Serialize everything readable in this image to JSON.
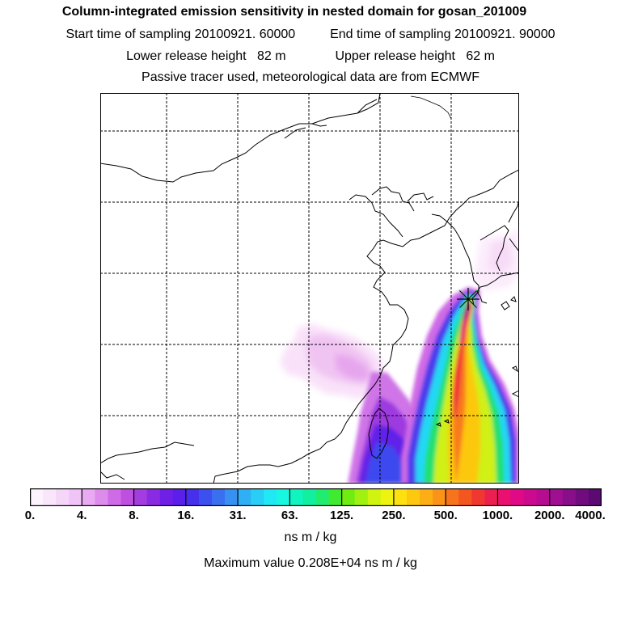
{
  "header": {
    "title": "Column-integrated emission sensitivity in nested domain for gosan_201009",
    "start_label": "Start time of sampling",
    "start_value": "20100921. 60000",
    "end_label": "End time of sampling",
    "end_value": "20100921. 90000",
    "lower_label": "Lower release height",
    "lower_value": "82 m",
    "upper_label": "Upper release height",
    "upper_value": "62 m",
    "note": "Passive tracer used, meteorological data are from ECMWF"
  },
  "colorbar": {
    "tick_labels": [
      "0.",
      "4.",
      "8.",
      "16.",
      "31.",
      "63.",
      "125.",
      "250.",
      "500.",
      "1000.",
      "2000.",
      "4000."
    ],
    "colors": [
      "#fdf3fd",
      "#fae6fb",
      "#f6d6f8",
      "#f0c4f6",
      "#e8aaf1",
      "#dd8cec",
      "#cf6be6",
      "#c04fdf",
      "#a33de0",
      "#8a2be2",
      "#7020e6",
      "#5a1fea",
      "#4630ec",
      "#3b50ef",
      "#3a70f0",
      "#3890f2",
      "#30b0f4",
      "#28cef5",
      "#20e8f4",
      "#18f8e0",
      "#10f4c0",
      "#10f0a0",
      "#20ec70",
      "#40ea30",
      "#70ec10",
      "#a0f010",
      "#d0f410",
      "#eef410",
      "#fde010",
      "#fdc810",
      "#fcae14",
      "#fa9418",
      "#f8741c",
      "#f45620",
      "#f03830",
      "#ec2050",
      "#ea1070",
      "#e00a86",
      "#cc0a8e",
      "#b60c92",
      "#a00e92",
      "#880e8a",
      "#700c7e",
      "#5a0a70"
    ]
  },
  "units": "ns m / kg",
  "max_value_text": "Maximum value  0.208E+04 ns m / kg"
}
